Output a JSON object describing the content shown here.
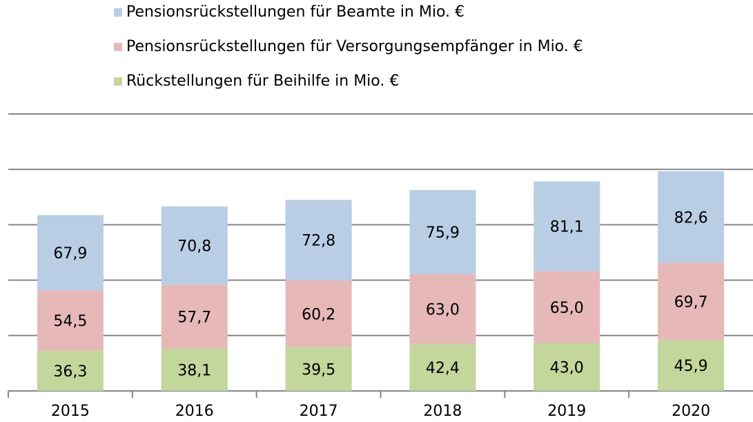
{
  "chart_data": {
    "type": "stacked_bar",
    "categories": [
      "2015",
      "2016",
      "2017",
      "2018",
      "2019",
      "2020"
    ],
    "series": [
      {
        "name": "Rückstellungen für Beihilfe in Mio. €",
        "color": "#c3d69b",
        "values": [
          36.3,
          38.1,
          39.5,
          42.4,
          43.0,
          45.9
        ],
        "value_labels": [
          "36,3",
          "38,1",
          "39,5",
          "42,4",
          "43,0",
          "45,9"
        ]
      },
      {
        "name": "Pensionsrückstellungen für Versorgungsempfänger in Mio. €",
        "color": "#e6b9b8",
        "values": [
          54.5,
          57.7,
          60.2,
          63.0,
          65.0,
          69.7
        ],
        "value_labels": [
          "54,5",
          "57,7",
          "60,2",
          "63,0",
          "65,0",
          "69,7"
        ]
      },
      {
        "name": "Pensionsrückstellungen für Beamte in Mio. €",
        "color": "#b9cde5",
        "values": [
          67.9,
          70.8,
          72.8,
          75.9,
          81.1,
          82.6
        ],
        "value_labels": [
          "67,9",
          "70,8",
          "72,8",
          "75,9",
          "81,1",
          "82,6"
        ]
      }
    ],
    "ylim": [
      0,
      250
    ],
    "yticks": [
      0,
      50,
      100,
      150,
      200,
      250
    ],
    "grid": true
  }
}
